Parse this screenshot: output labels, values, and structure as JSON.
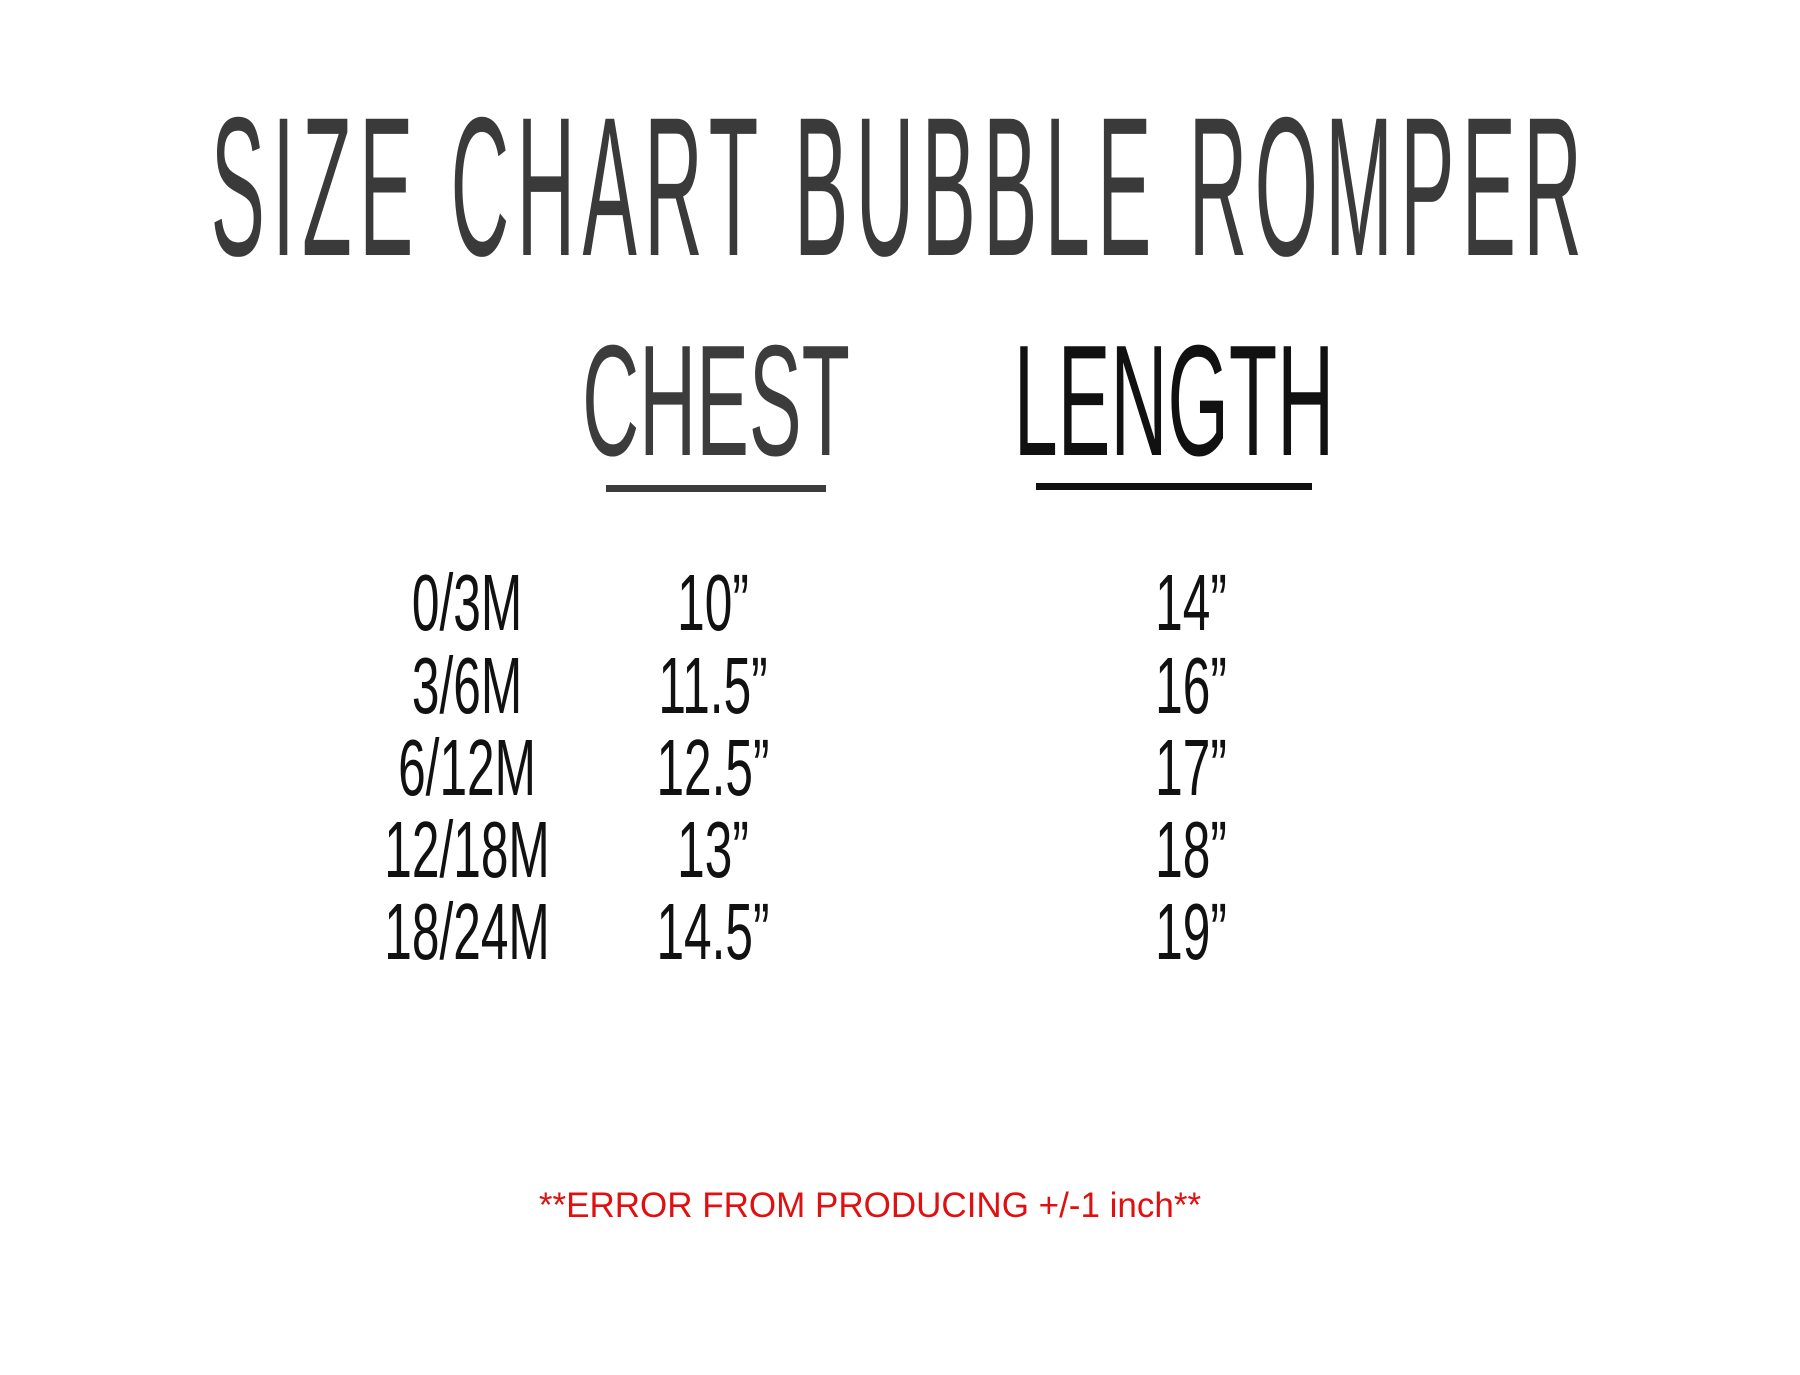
{
  "title": "SIZE CHART BUBBLE ROMPER",
  "columns": {
    "chest": "CHEST",
    "length": "LENGTH"
  },
  "rows": [
    {
      "size": "0/3M",
      "chest": "10”",
      "length": "14”"
    },
    {
      "size": "3/6M",
      "chest": "11.5”",
      "length": "16”"
    },
    {
      "size": "6/12M",
      "chest": "12.5”",
      "length": "17”"
    },
    {
      "size": "12/18M",
      "chest": "13”",
      "length": "18”"
    },
    {
      "size": "18/24M",
      "chest": "14.5”",
      "length": "19”"
    }
  ],
  "note": "**ERROR FROM PRODUCING +/-1 inch**",
  "colors": {
    "text": "#111111",
    "note": "#e01010"
  }
}
